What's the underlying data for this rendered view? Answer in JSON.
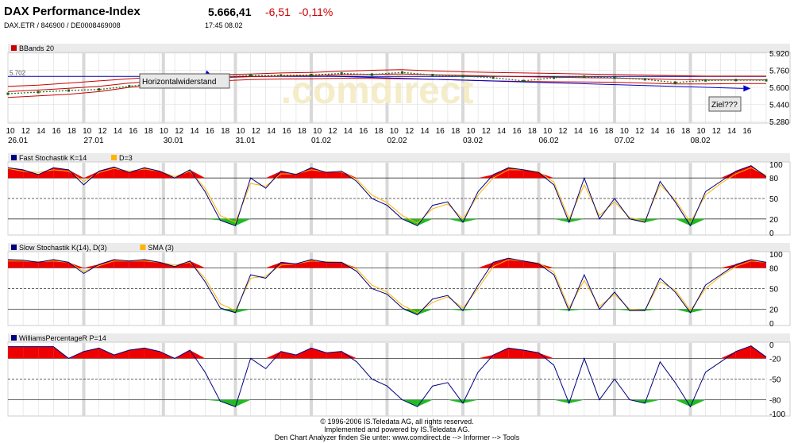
{
  "header": {
    "title": "DAX Performance-Index",
    "subtitle": "DAX.ETR  /  846900  /  DE0008469008",
    "price": "5.666,41",
    "change": "-6,51",
    "change_pct": "-0,11%",
    "time": "17:45   08.02"
  },
  "colors": {
    "panel_header_bg": "#ebebeb",
    "grid": "#dcdcdc",
    "red_fill": "#ee0000",
    "green_fill": "#22bb22",
    "k_line": "#000080",
    "d_line": "#ffb400",
    "hline": "#000066"
  },
  "footer": {
    "line1": "© 1996-2006 IS.Teledata AG, all rights reserved.",
    "line2": "Implemented and powered by IS.Teledata AG.",
    "line3": "Den Chart Analyzer finden Sie unter: www.comdirect.de --> Informer --> Tools"
  },
  "chart_data": [
    {
      "type": "line",
      "title": "BBands 20",
      "legend": [
        {
          "name": "BBands 20",
          "color": "#cc0000"
        }
      ],
      "watermark": ".comdirect",
      "y_ticks": [
        "5.920",
        "5.760",
        "5.600",
        "5.440",
        "5.280"
      ],
      "ylim": [
        5280,
        5920
      ],
      "x_hour_labels": [
        "10",
        "12",
        "14",
        "16",
        "18",
        "10",
        "12",
        "14",
        "16",
        "18",
        "10",
        "12",
        "14",
        "16",
        "18",
        "10",
        "12",
        "14",
        "16",
        "18",
        "10",
        "12",
        "14",
        "16",
        "18",
        "10",
        "12",
        "14",
        "16",
        "18",
        "10",
        "12",
        "14",
        "16",
        "18",
        "10",
        "12",
        "14",
        "16",
        "18",
        "10",
        "12",
        "14",
        "16",
        "18",
        "10",
        "12",
        "14",
        "16"
      ],
      "x_date_labels": [
        "26.01",
        "27.01",
        "30.01",
        "31.01",
        "01.02",
        "02.02",
        "03.02",
        "06.02",
        "07.02",
        "08.02"
      ],
      "resistance_level_label": "5.702",
      "resistance_level": 5702,
      "annotations": [
        "Horizontalwiderstand",
        "Ziel???"
      ],
      "price_x": [
        0,
        4,
        8,
        12,
        16,
        20,
        24,
        28,
        32,
        36,
        40,
        44,
        48,
        52,
        56,
        60,
        64,
        68,
        72,
        76,
        80,
        84,
        88,
        92,
        96,
        100
      ],
      "price": [
        5540,
        5555,
        5570,
        5580,
        5610,
        5640,
        5680,
        5700,
        5710,
        5712,
        5715,
        5730,
        5720,
        5740,
        5715,
        5705,
        5690,
        5660,
        5690,
        5700,
        5690,
        5675,
        5645,
        5665,
        5668,
        5666
      ],
      "bb_upper": [
        5610,
        5620,
        5640,
        5660,
        5680,
        5700,
        5710,
        5720,
        5725,
        5735,
        5740,
        5750,
        5760,
        5765,
        5755,
        5745,
        5740,
        5735,
        5730,
        5725,
        5720,
        5715,
        5710,
        5705,
        5705,
        5705
      ],
      "bb_mid": [
        5560,
        5575,
        5590,
        5610,
        5640,
        5660,
        5680,
        5690,
        5700,
        5705,
        5710,
        5718,
        5722,
        5725,
        5718,
        5712,
        5705,
        5700,
        5695,
        5690,
        5688,
        5680,
        5672,
        5670,
        5670,
        5670
      ],
      "bb_lower": [
        5505,
        5520,
        5535,
        5560,
        5600,
        5620,
        5650,
        5660,
        5672,
        5678,
        5680,
        5685,
        5684,
        5680,
        5675,
        5668,
        5660,
        5655,
        5652,
        5650,
        5648,
        5640,
        5632,
        5632,
        5635,
        5635
      ]
    },
    {
      "type": "line",
      "title": "Fast Stochastik K=14",
      "legend": [
        {
          "name": "Fast Stochastik K=14",
          "color": "#000080"
        },
        {
          "name": "D=3",
          "color": "#ffb400"
        }
      ],
      "y_ticks": [
        "100",
        "80",
        "50",
        "20",
        "0"
      ],
      "ylim": [
        0,
        100
      ],
      "levels": [
        80,
        50,
        20
      ],
      "x": [
        0,
        2,
        4,
        6,
        8,
        10,
        12,
        14,
        16,
        18,
        20,
        22,
        24,
        26,
        28,
        30,
        32,
        34,
        36,
        38,
        40,
        42,
        44,
        46,
        48,
        50,
        52,
        54,
        56,
        58,
        60,
        62,
        64,
        66,
        68,
        70,
        72,
        74,
        76,
        78,
        80,
        82,
        84,
        86,
        88,
        90,
        92,
        94,
        96,
        98,
        100
      ],
      "k": [
        95,
        92,
        85,
        95,
        92,
        70,
        90,
        96,
        88,
        95,
        90,
        80,
        92,
        60,
        18,
        10,
        80,
        65,
        90,
        85,
        95,
        88,
        90,
        75,
        50,
        40,
        20,
        10,
        40,
        45,
        15,
        60,
        85,
        95,
        92,
        88,
        70,
        15,
        80,
        20,
        50,
        20,
        15,
        75,
        45,
        10,
        60,
        75,
        90,
        98,
        82
      ],
      "d": [
        94,
        90,
        88,
        92,
        90,
        75,
        88,
        94,
        90,
        93,
        90,
        82,
        90,
        65,
        25,
        15,
        72,
        68,
        86,
        86,
        92,
        89,
        89,
        78,
        55,
        44,
        25,
        14,
        35,
        42,
        20,
        55,
        80,
        92,
        92,
        89,
        74,
        20,
        70,
        25,
        45,
        22,
        17,
        70,
        48,
        15,
        55,
        72,
        86,
        95,
        84
      ]
    },
    {
      "type": "line",
      "title": "Slow Stochastik K(14), D(3)",
      "legend": [
        {
          "name": "Slow Stochastik K(14), D(3)",
          "color": "#000080"
        },
        {
          "name": "SMA (3)",
          "color": "#ffb400"
        }
      ],
      "y_ticks": [
        "100",
        "80",
        "50",
        "20",
        "0"
      ],
      "ylim": [
        0,
        100
      ],
      "levels": [
        80,
        50,
        20
      ],
      "x": [
        0,
        2,
        4,
        6,
        8,
        10,
        12,
        14,
        16,
        18,
        20,
        22,
        24,
        26,
        28,
        30,
        32,
        34,
        36,
        38,
        40,
        42,
        44,
        46,
        48,
        50,
        52,
        54,
        56,
        58,
        60,
        62,
        64,
        66,
        68,
        70,
        72,
        74,
        76,
        78,
        80,
        82,
        84,
        86,
        88,
        90,
        92,
        94,
        96,
        98,
        100
      ],
      "k": [
        92,
        91,
        88,
        92,
        88,
        72,
        85,
        92,
        90,
        92,
        88,
        82,
        90,
        60,
        22,
        15,
        70,
        65,
        88,
        86,
        92,
        88,
        88,
        75,
        50,
        42,
        22,
        12,
        35,
        40,
        18,
        55,
        88,
        94,
        90,
        86,
        70,
        18,
        70,
        20,
        45,
        18,
        18,
        65,
        45,
        15,
        55,
        70,
        85,
        92,
        88
      ],
      "d": [
        90,
        90,
        89,
        90,
        88,
        75,
        83,
        90,
        90,
        90,
        88,
        84,
        88,
        65,
        28,
        18,
        65,
        68,
        84,
        86,
        90,
        89,
        88,
        78,
        55,
        45,
        26,
        15,
        30,
        38,
        22,
        50,
        82,
        92,
        90,
        87,
        74,
        22,
        62,
        24,
        42,
        20,
        18,
        60,
        48,
        18,
        50,
        68,
        82,
        90,
        88
      ]
    },
    {
      "type": "line",
      "title": "WilliamsPercentageR P=14",
      "legend": [
        {
          "name": "WilliamsPercentageR P=14",
          "color": "#000080"
        }
      ],
      "y_ticks": [
        "0",
        "-20",
        "-50",
        "-80",
        "-100"
      ],
      "ylim": [
        -100,
        0
      ],
      "levels": [
        -20,
        -50,
        -80
      ],
      "x": [
        0,
        2,
        4,
        6,
        8,
        10,
        12,
        14,
        16,
        18,
        20,
        22,
        24,
        26,
        28,
        30,
        32,
        34,
        36,
        38,
        40,
        42,
        44,
        46,
        48,
        50,
        52,
        54,
        56,
        58,
        60,
        62,
        64,
        66,
        68,
        70,
        72,
        74,
        76,
        78,
        80,
        82,
        84,
        86,
        88,
        90,
        92,
        94,
        96,
        98,
        100
      ],
      "r": [
        -3,
        -3,
        -3,
        -3,
        -20,
        -10,
        -5,
        -15,
        -8,
        -5,
        -10,
        -20,
        -8,
        -40,
        -82,
        -90,
        -20,
        -35,
        -10,
        -15,
        -5,
        -12,
        -10,
        -25,
        -50,
        -60,
        -80,
        -90,
        -60,
        -55,
        -85,
        -40,
        -15,
        -5,
        -8,
        -12,
        -30,
        -85,
        -20,
        -80,
        -50,
        -80,
        -85,
        -25,
        -55,
        -90,
        -40,
        -25,
        -10,
        -2,
        -18
      ]
    }
  ]
}
